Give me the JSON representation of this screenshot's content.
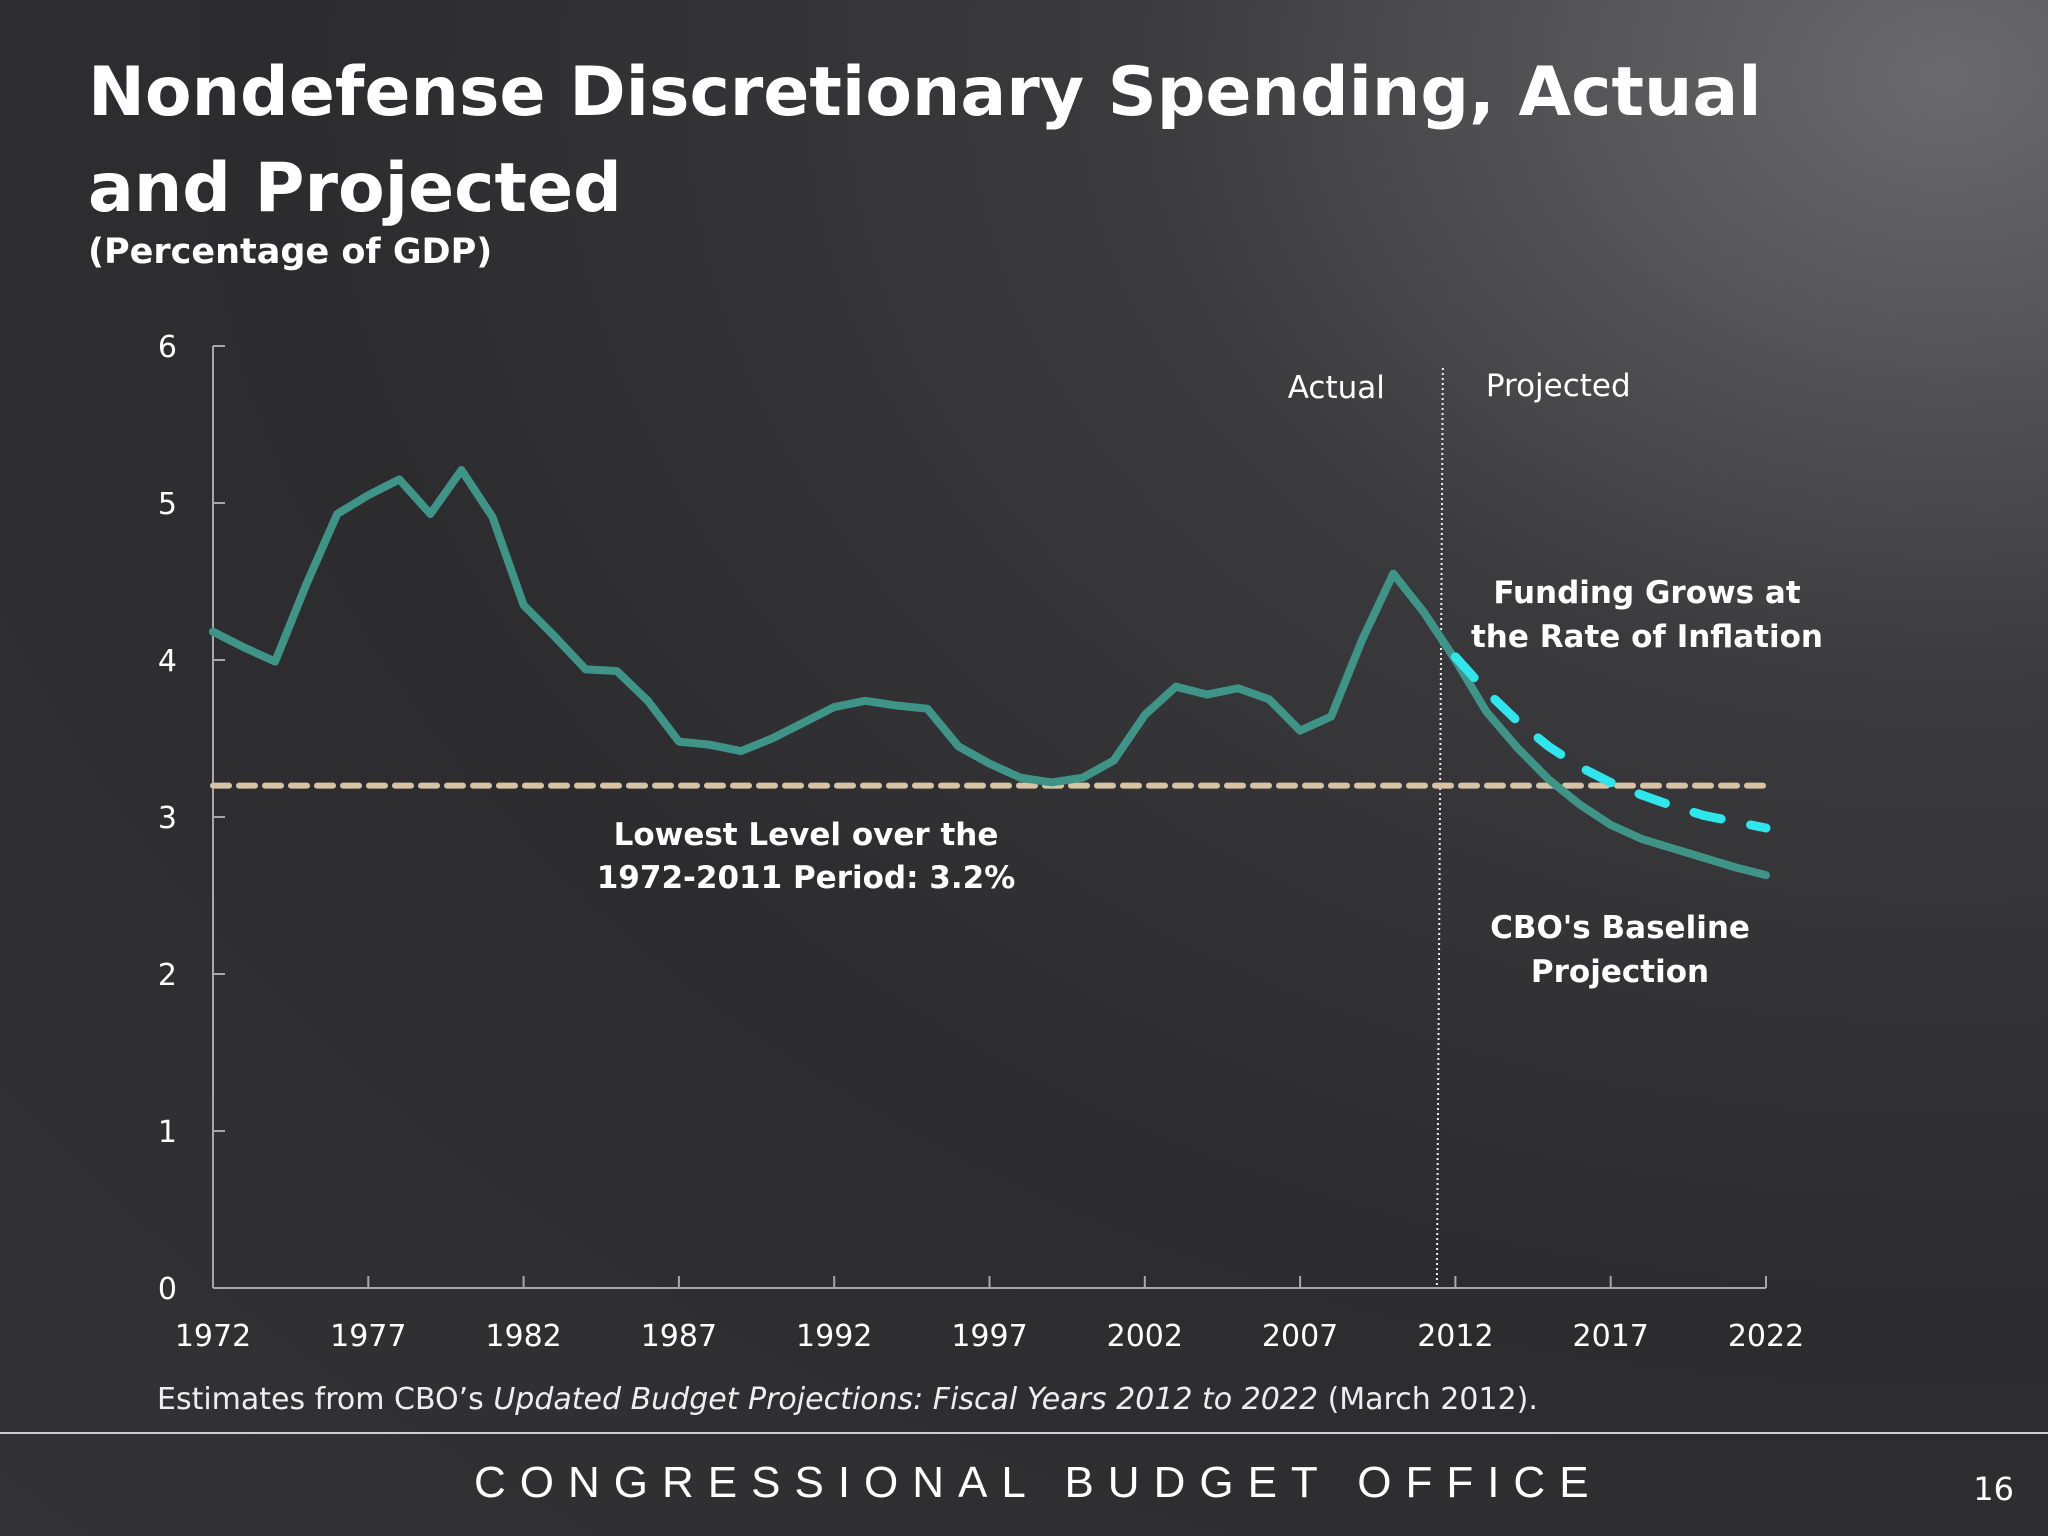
{
  "chart_data": {
    "type": "line",
    "title": "Nondefense Discretionary Spending, Actual and Projected",
    "subtitle": "(Percentage of GDP)",
    "xlim": [
      1972,
      2022
    ],
    "ylim": [
      0,
      6
    ],
    "x_ticks": [
      "1972",
      "1977",
      "1982",
      "1987",
      "1992",
      "1997",
      "2002",
      "2007",
      "2012",
      "2017",
      "2022"
    ],
    "y_ticks": [
      "0",
      "1",
      "2",
      "3",
      "4",
      "5",
      "6"
    ],
    "grid": false,
    "divider_year": 2011.5,
    "region_labels": {
      "left": "Actual",
      "right": "Projected"
    },
    "reference_line": {
      "value": 3.2,
      "color": "#d6c4a4",
      "label_line1": "Lowest Level over the",
      "label_line2": "1972-2011 Period: 3.2%"
    },
    "series": [
      {
        "label_line1": "CBO's Baseline",
        "label_line2": "Projection",
        "color": "#3f9488",
        "x": [
          1972,
          1973,
          1974,
          1975,
          1976,
          1977,
          1978,
          1979,
          1980,
          1981,
          1982,
          1983,
          1984,
          1985,
          1986,
          1987,
          1988,
          1989,
          1990,
          1991,
          1992,
          1993,
          1994,
          1995,
          1996,
          1997,
          1998,
          1999,
          2000,
          2001,
          2002,
          2003,
          2004,
          2005,
          2006,
          2007,
          2008,
          2009,
          2010,
          2011,
          2012,
          2013,
          2014,
          2015,
          2016,
          2017,
          2018,
          2019,
          2020,
          2021,
          2022
        ],
        "y": [
          4.18,
          4.08,
          3.99,
          4.48,
          4.93,
          5.05,
          5.15,
          4.93,
          5.21,
          4.91,
          4.35,
          4.15,
          3.94,
          3.93,
          3.74,
          3.48,
          3.46,
          3.42,
          3.5,
          3.6,
          3.7,
          3.74,
          3.71,
          3.69,
          3.45,
          3.34,
          3.25,
          3.22,
          3.25,
          3.36,
          3.65,
          3.83,
          3.78,
          3.82,
          3.75,
          3.55,
          3.64,
          4.13,
          4.55,
          4.3,
          4.0,
          3.67,
          3.44,
          3.24,
          3.08,
          2.95,
          2.86,
          2.8,
          2.74,
          2.68,
          2.63
        ]
      },
      {
        "label_line1": "Funding Grows at",
        "label_line2": "the Rate of Inflation",
        "color": "#2ee6ec",
        "dashed": true,
        "x": [
          2012,
          2013,
          2014,
          2015,
          2016,
          2017,
          2018,
          2019,
          2020,
          2021,
          2022
        ],
        "y": [
          4.02,
          3.8,
          3.61,
          3.45,
          3.32,
          3.22,
          3.14,
          3.07,
          3.01,
          2.97,
          2.93
        ]
      }
    ]
  },
  "source": {
    "prefix": "Estimates from CBO’s ",
    "italic": "Updated Budget Projections: Fiscal Years 2012 to 2022",
    "suffix": " (March 2012)."
  },
  "footer": {
    "org": "CONGRESSIONAL BUDGET OFFICE",
    "page": "16"
  }
}
